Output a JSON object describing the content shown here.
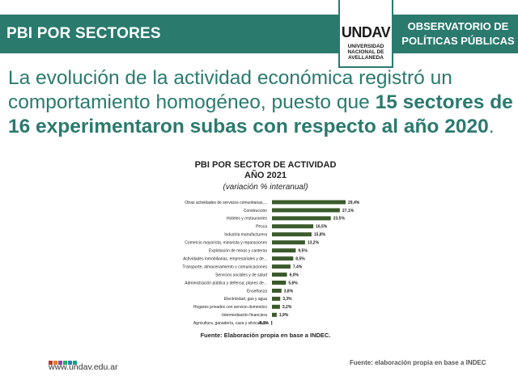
{
  "header": {
    "title": "PBI POR SECTORES",
    "logo_mark": "UNDAV",
    "logo_lines": [
      "UNIVERSIDAD",
      "NACIONAL DE",
      "AVELLANEDA"
    ],
    "observatorio_line1": "OBSERVATORIO DE",
    "observatorio_line2": "POLÍTICAS PÚBLICAS"
  },
  "headline": {
    "normal_1": "La evolución de la actividad económica registró un comportamiento homogéneo, puesto que ",
    "bold": "15 sectores de 16 experimentaron subas con respecto al año 2020",
    "normal_2": "."
  },
  "chart_data": {
    "type": "bar",
    "orientation": "horizontal",
    "title_line1": "PBI POR SECTOR DE ACTIVIDAD",
    "title_line2": "AÑO 2021",
    "subtitle": "(variación % interanual)",
    "categories": [
      "Otras actividades de servicios comunitarias,...",
      "Construcción",
      "Hoteles y restaurantes",
      "Pesca",
      "Industria manufacturera",
      "Comercio mayorista, minorista y reparaciones",
      "Explotación de minas y canteras",
      "Actividades inmobiliarias, empresariales y de...",
      "Transporte, almacenamiento y comunicaciones",
      "Servicios sociales y de salud",
      "Administración pública y defensa; planes de...",
      "Enseñanza",
      "Electricidad, gas y agua",
      "Hogares privados con servicio doméstico",
      "Intermediación financiera",
      "Agricultura, ganadería, caza y silvicultura"
    ],
    "values": [
      29.4,
      27.1,
      23.5,
      16.5,
      15.8,
      13.2,
      9.5,
      8.5,
      7.4,
      6.0,
      5.6,
      3.8,
      3.3,
      3.2,
      1.9,
      -0.3
    ],
    "value_labels": [
      "29,4%",
      "27,1%",
      "23,5%",
      "16,5%",
      "15,8%",
      "13,2%",
      "9,5%",
      "8,5%",
      "7,4%",
      "6,0%",
      "5,6%",
      "3,8%",
      "3,3%",
      "3,2%",
      "1,9%",
      "-0,3%"
    ],
    "bar_color": "#3a5a2a",
    "source": "Fuente: Elaboración propia en base a INDEC."
  },
  "footer": {
    "url": "www.undav.edu.ar",
    "dot_colors": [
      "#c0392b",
      "#e67e22",
      "#8e44ad",
      "#27ae60",
      "#2980b9",
      "#16a085"
    ],
    "source": "Fuente: elaboración propia en base a INDEC"
  },
  "colors": {
    "brand_teal": "#2a7a6e"
  }
}
